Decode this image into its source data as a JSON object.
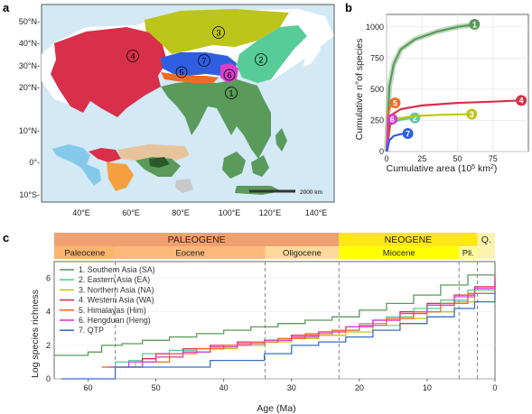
{
  "panels": {
    "a": "a",
    "b": "b",
    "c": "c"
  },
  "map": {
    "lat_labels": [
      "50°N-",
      "40°N-",
      "30°N-",
      "20°N-",
      "10°N-",
      "0°-",
      "10°S-"
    ],
    "lon_labels": [
      "40°E",
      "60°E",
      "80°E",
      "100°E",
      "120°E",
      "140°E"
    ],
    "scale_label": "2000 km",
    "regions": [
      {
        "num": "1",
        "color": "#5a9a5a"
      },
      {
        "num": "2",
        "color": "#57cc99"
      },
      {
        "num": "3",
        "color": "#bdc51a"
      },
      {
        "num": "4",
        "color": "#d8304a"
      },
      {
        "num": "5",
        "color": "#f26b22"
      },
      {
        "num": "6",
        "color": "#d640c8"
      },
      {
        "num": "7",
        "color": "#2f5fe0"
      }
    ],
    "colors": {
      "sea": "#d3e9f5",
      "land": "#ffffff"
    }
  },
  "chart_data": [
    {
      "type": "line",
      "xlabel": "Cumulative area (10",
      "xlabel_sup": "5",
      "xlabel_end": " km",
      "xlabel_sup2": "2",
      "xlabel_close": ")",
      "ylabel": "Cumulative n°of species",
      "xlim": [
        0,
        100
      ],
      "ylim": [
        0,
        1100
      ],
      "x_ticks": [
        "0",
        "25",
        "50",
        "75"
      ],
      "y_ticks": [
        "0",
        "250",
        "500",
        "750",
        "1000"
      ],
      "grid": true,
      "series": [
        {
          "name": "1",
          "color": "#5a9a5a",
          "x": [
            0,
            2,
            5,
            10,
            20,
            35,
            50,
            62
          ],
          "y": [
            0,
            520,
            700,
            820,
            900,
            960,
            1000,
            1020
          ]
        },
        {
          "name": "2",
          "color": "#57cc99",
          "x": [
            0,
            2,
            5,
            10,
            15,
            20
          ],
          "y": [
            0,
            200,
            235,
            255,
            265,
            270
          ]
        },
        {
          "name": "3",
          "color": "#bdc51a",
          "x": [
            0,
            3,
            8,
            20,
            40,
            60
          ],
          "y": [
            0,
            230,
            265,
            285,
            295,
            300
          ]
        },
        {
          "name": "4",
          "color": "#d8304a",
          "x": [
            0,
            3,
            10,
            25,
            50,
            75,
            95
          ],
          "y": [
            0,
            290,
            340,
            370,
            390,
            400,
            410
          ]
        },
        {
          "name": "5",
          "color": "#f26b22",
          "x": [
            0,
            1,
            2,
            4,
            6
          ],
          "y": [
            0,
            300,
            350,
            380,
            390
          ]
        },
        {
          "name": "6",
          "color": "#d640c8",
          "x": [
            0,
            1,
            2,
            3,
            4
          ],
          "y": [
            0,
            220,
            245,
            255,
            260
          ]
        },
        {
          "name": "7",
          "color": "#2f5fe0",
          "x": [
            0,
            2,
            5,
            10,
            15
          ],
          "y": [
            0,
            90,
            125,
            140,
            145
          ]
        }
      ]
    },
    {
      "type": "line",
      "xlabel": "Age (Ma)",
      "ylabel": "Log species richness",
      "xlim": [
        65,
        0
      ],
      "ylim": [
        0,
        7
      ],
      "x_ticks": [
        "60",
        "50",
        "40",
        "30",
        "20",
        "10",
        "0"
      ],
      "y_ticks": [
        "0",
        "2",
        "4",
        "6"
      ],
      "dashed_lines": [
        56,
        33.9,
        23,
        5.3,
        2.6
      ],
      "timescale": {
        "eras": [
          {
            "label": "PALEOGENE",
            "from": 66,
            "to": 23,
            "color": "#f0a070"
          },
          {
            "label": "NEOGENE",
            "from": 23,
            "to": 2.6,
            "color": "#ffe619"
          },
          {
            "label": "Q.",
            "from": 2.6,
            "to": 0,
            "color": "#fff2ae"
          }
        ],
        "epochs": [
          {
            "label": "Paleocene",
            "from": 66,
            "to": 56,
            "color": "#fdb46c"
          },
          {
            "label": "Eocene",
            "from": 56,
            "to": 33.9,
            "color": "#fdb87a"
          },
          {
            "label": "Oligocene",
            "from": 33.9,
            "to": 23,
            "color": "#fed99a"
          },
          {
            "label": "Miocene",
            "from": 23,
            "to": 5.3,
            "color": "#ffff00"
          },
          {
            "label": "Pli.",
            "from": 5.3,
            "to": 2.6,
            "color": "#ffff99"
          },
          {
            "label": "",
            "from": 2.6,
            "to": 0,
            "color": "#fff2ae"
          }
        ]
      },
      "series": [
        {
          "name": "1. Southern Asia (SA)",
          "color": "#5a9a5a",
          "x": [
            65,
            62,
            60,
            58,
            55,
            52,
            48,
            44,
            40,
            36,
            32,
            28,
            24,
            20,
            16,
            12,
            8,
            4,
            0
          ],
          "y": [
            1.4,
            1.4,
            1.6,
            2.0,
            2.1,
            2.3,
            2.5,
            2.7,
            2.9,
            3.1,
            3.3,
            3.5,
            3.7,
            4.1,
            4.5,
            5.0,
            5.6,
            6.2,
            6.9
          ]
        },
        {
          "name": "2. Eastern Asia (EA)",
          "color": "#57cc99",
          "x": [
            58,
            56,
            54,
            52,
            48,
            44,
            40,
            36,
            32,
            28,
            24,
            20,
            16,
            12,
            8,
            4,
            0
          ],
          "y": [
            0.7,
            1.0,
            1.1,
            1.5,
            1.7,
            1.8,
            2.0,
            2.2,
            2.4,
            2.6,
            2.9,
            3.3,
            3.7,
            4.2,
            4.7,
            5.3,
            5.8
          ]
        },
        {
          "name": "3. Northern Asia (NA)",
          "color": "#bdc51a",
          "x": [
            55,
            53,
            50,
            46,
            42,
            38,
            34,
            30,
            26,
            22,
            18,
            14,
            10,
            6,
            3,
            0
          ],
          "y": [
            0.7,
            1.0,
            1.3,
            1.6,
            1.8,
            2.0,
            2.2,
            2.4,
            2.6,
            2.8,
            3.2,
            3.6,
            4.0,
            4.6,
            5.1,
            5.6
          ]
        },
        {
          "name": "4. Western Asia (WA)",
          "color": "#d8304a",
          "x": [
            54,
            52,
            50,
            46,
            42,
            38,
            34,
            30,
            26,
            22,
            18,
            14,
            10,
            6,
            3,
            0
          ],
          "y": [
            0.7,
            1.2,
            1.5,
            1.8,
            2.0,
            2.2,
            2.3,
            2.6,
            2.8,
            3.1,
            3.5,
            4.0,
            4.5,
            5.0,
            5.5,
            6.2
          ]
        },
        {
          "name": "5. Himalayas (Him)",
          "color": "#f26b22",
          "x": [
            58,
            56,
            52,
            48,
            44,
            40,
            36,
            32,
            28,
            24,
            20,
            16,
            12,
            8,
            4,
            0
          ],
          "y": [
            0.7,
            0.7,
            1.0,
            1.5,
            1.8,
            2.0,
            2.2,
            2.4,
            2.7,
            2.9,
            3.2,
            3.6,
            4.0,
            4.5,
            5.1,
            5.9
          ]
        },
        {
          "name": "6. Hengduan (Heng)",
          "color": "#d640c8",
          "x": [
            57,
            54,
            50,
            46,
            42,
            38,
            34,
            30,
            26,
            22,
            18,
            14,
            10,
            6,
            3,
            0
          ],
          "y": [
            0.7,
            1.0,
            1.3,
            1.6,
            1.9,
            2.1,
            2.3,
            2.5,
            2.8,
            3.1,
            3.5,
            3.9,
            4.4,
            4.9,
            5.4,
            6.0
          ]
        },
        {
          "name": "7. QTP",
          "color": "#3b6fc0",
          "x": [
            64,
            60,
            58,
            56,
            54,
            50,
            46,
            42,
            38,
            34,
            30,
            26,
            22,
            18,
            14,
            10,
            6,
            3,
            0
          ],
          "y": [
            0.0,
            0.0,
            0.0,
            0.7,
            0.7,
            0.7,
            0.7,
            1.1,
            1.1,
            1.5,
            2.0,
            2.2,
            2.5,
            2.9,
            3.3,
            3.7,
            4.2,
            4.6,
            5.2
          ]
        }
      ]
    }
  ]
}
